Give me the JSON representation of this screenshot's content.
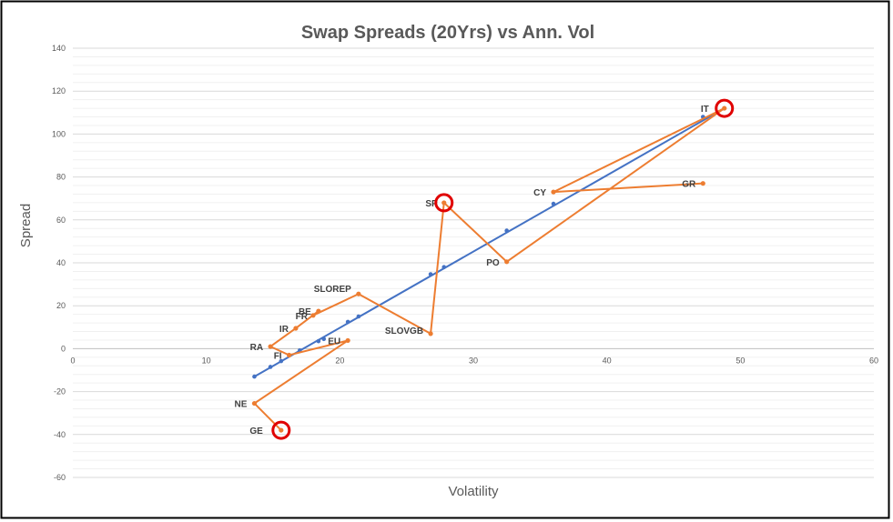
{
  "chart_data": {
    "type": "scatter",
    "title": "Swap Spreads (20Yrs) vs Ann. Vol",
    "xlabel": "Volatility",
    "ylabel": "Spread",
    "xlim": [
      0,
      60
    ],
    "ylim": [
      -60,
      140
    ],
    "x_ticks": [
      0,
      10,
      20,
      30,
      40,
      50,
      60
    ],
    "y_ticks": [
      -60,
      -40,
      -20,
      0,
      20,
      40,
      60,
      80,
      100,
      120,
      140
    ],
    "grid": "horizontal",
    "legend": "none",
    "colors": {
      "fit": "#4472C4",
      "series": "#ED7D31",
      "highlight": "#E00000",
      "border": "#000000",
      "grid": "#D9D9D9"
    },
    "fit_line": {
      "x": [
        13.6,
        48.8
      ],
      "y": [
        -13,
        112
      ],
      "points": [
        [
          13.6,
          -13
        ],
        [
          14.8,
          -8.5
        ],
        [
          15.6,
          -5.8
        ],
        [
          17.0,
          -0.8
        ],
        [
          18.4,
          3.5
        ],
        [
          18.8,
          4.5
        ],
        [
          20.6,
          12.5
        ],
        [
          21.4,
          15
        ],
        [
          26.8,
          34.7
        ],
        [
          27.8,
          38
        ],
        [
          32.5,
          55
        ],
        [
          36.0,
          67.5
        ],
        [
          47.2,
          108
        ],
        [
          48.8,
          112
        ]
      ]
    },
    "series": [
      {
        "labels": [
          "GE",
          "NE",
          "EU",
          "FI",
          "RA",
          "IR",
          "BE",
          "FR",
          "SLOREP",
          "SLOVGB",
          "SP",
          "PO",
          "IT",
          "CY",
          "GR"
        ],
        "x": [
          15.6,
          13.6,
          20.6,
          16.2,
          14.8,
          16.7,
          18.4,
          18.0,
          21.4,
          26.8,
          27.8,
          32.5,
          48.8,
          36.0,
          47.2
        ],
        "y": [
          -38,
          -25.5,
          3.8,
          -3,
          1,
          9.5,
          17.5,
          15.5,
          25.5,
          7,
          68,
          40.5,
          112,
          73,
          77
        ]
      }
    ],
    "highlighted": [
      "GE",
      "SP",
      "IT"
    ]
  }
}
